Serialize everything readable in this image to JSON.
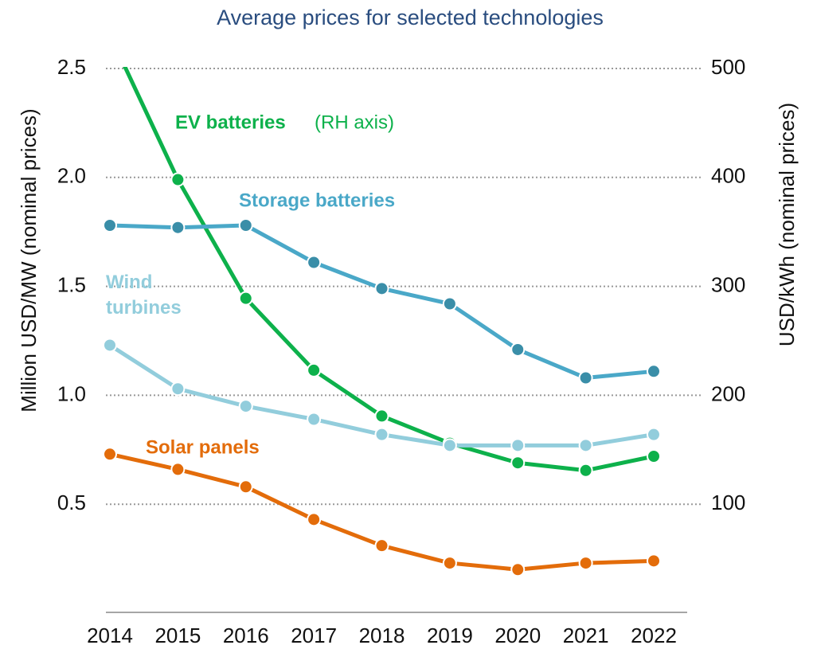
{
  "chart_data": {
    "type": "line",
    "title": "Average prices for selected technologies",
    "y_label": "Million USD/MW (nominal prices)",
    "y2_label": "USD/kWh (nominal prices)",
    "categories": [
      "2014",
      "2015",
      "2016",
      "2017",
      "2018",
      "2019",
      "2020",
      "2021",
      "2022"
    ],
    "ylim": [
      0,
      2.5
    ],
    "yticks": [
      0.5,
      {
        "value": 1,
        "label": "1.0"
      },
      1.5,
      {
        "value": 2,
        "label": "2.0"
      },
      2.5
    ],
    "y2lim": [
      0,
      500
    ],
    "y2ticks": [
      100,
      200,
      300,
      400,
      500
    ],
    "grid": true,
    "annotations": [
      "(RH axis)"
    ],
    "series": [
      {
        "name": "EV batteries",
        "color": "#0db14b",
        "axis": "y2",
        "values": [
          531,
          398,
          289,
          223,
          181,
          156,
          138,
          131,
          144
        ]
      },
      {
        "name": "Storage batteries",
        "color": "#4aa8c8",
        "values": [
          1.78,
          1.77,
          1.78,
          1.61,
          1.49,
          1.42,
          1.21,
          1.08,
          1.11
        ]
      },
      {
        "name": "Wind turbines",
        "color": "#92cddc",
        "values": [
          1.23,
          1.03,
          0.95,
          0.89,
          0.82,
          0.77,
          0.77,
          0.77,
          0.82
        ]
      },
      {
        "name": "Solar panels",
        "color": "#e36c0a",
        "values": [
          0.73,
          0.66,
          0.58,
          0.43,
          0.31,
          0.23,
          0.2,
          0.23,
          0.24
        ]
      }
    ]
  }
}
